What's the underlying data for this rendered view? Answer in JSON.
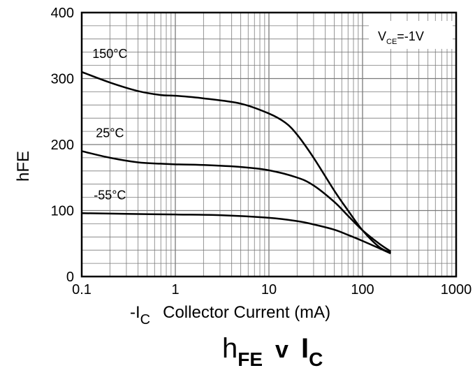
{
  "chart_data": {
    "type": "line",
    "title": {
      "h": "h",
      "fe": "FE",
      "v": "v",
      "i": "I",
      "c": "C"
    },
    "xlabel": {
      "minus_i": "-I",
      "sub": "C",
      "rest": "Collector Current (mA)"
    },
    "ylabel": "hFE",
    "x_scale": "log",
    "xlim": [
      0.1,
      1000
    ],
    "ylim": [
      0,
      400
    ],
    "x_ticks": [
      {
        "value": 0.1,
        "label": "0.1"
      },
      {
        "value": 1,
        "label": "1"
      },
      {
        "value": 10,
        "label": "10"
      },
      {
        "value": 100,
        "label": "100"
      },
      {
        "value": 1000,
        "label": "1000"
      }
    ],
    "y_ticks": [
      {
        "value": 0,
        "label": "0"
      },
      {
        "value": 100,
        "label": "100"
      },
      {
        "value": 200,
        "label": "200"
      },
      {
        "value": 300,
        "label": "300"
      },
      {
        "value": 400,
        "label": "400"
      }
    ],
    "grid": true,
    "condition": {
      "v": "V",
      "sub": "CE",
      "rest": "=-1V"
    },
    "series": [
      {
        "name": "150°C",
        "x": [
          0.1,
          0.2,
          0.4,
          0.7,
          1,
          2,
          5,
          10,
          15,
          20,
          30,
          50,
          70,
          100,
          150,
          200
        ],
        "y": [
          310,
          294,
          281,
          275,
          274,
          270,
          262,
          247,
          233,
          215,
          180,
          130,
          100,
          70,
          45,
          36
        ]
      },
      {
        "name": "25°C",
        "x": [
          0.1,
          0.2,
          0.4,
          0.7,
          1,
          2,
          5,
          10,
          20,
          30,
          50,
          70,
          100,
          150,
          200
        ],
        "y": [
          190,
          180,
          173,
          171,
          170,
          169,
          166,
          161,
          150,
          138,
          113,
          92,
          70,
          50,
          38
        ]
      },
      {
        "name": "-55°C",
        "x": [
          0.1,
          0.3,
          1,
          3,
          10,
          20,
          30,
          50,
          70,
          100,
          150,
          200
        ],
        "y": [
          96,
          95,
          94,
          93,
          89,
          84,
          79,
          71,
          63,
          54,
          43,
          35
        ]
      }
    ]
  }
}
